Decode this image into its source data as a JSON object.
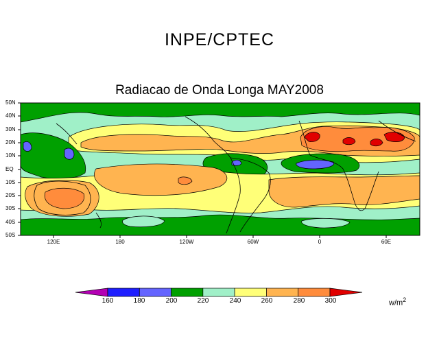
{
  "header": {
    "title": "INPE/CPTEC"
  },
  "map": {
    "title": "Radiacao de Onda Longa MAY2008",
    "lat_labels": [
      "50N",
      "40N",
      "30N",
      "20N",
      "10N",
      "EQ",
      "10S",
      "20S",
      "30S",
      "40S",
      "50S"
    ],
    "lon_labels": [
      "120E",
      "180",
      "120W",
      "60W",
      "0",
      "60E"
    ]
  },
  "colorbar": {
    "labels": [
      "160",
      "180",
      "200",
      "220",
      "240",
      "260",
      "280",
      "300"
    ],
    "units": "w/m",
    "units_exp": "2",
    "colors": [
      "#b400b4",
      "#1e1eff",
      "#6464ff",
      "#00a000",
      "#a0f0c8",
      "#ffff78",
      "#ffb450",
      "#ff8c3c",
      "#e10000"
    ]
  }
}
